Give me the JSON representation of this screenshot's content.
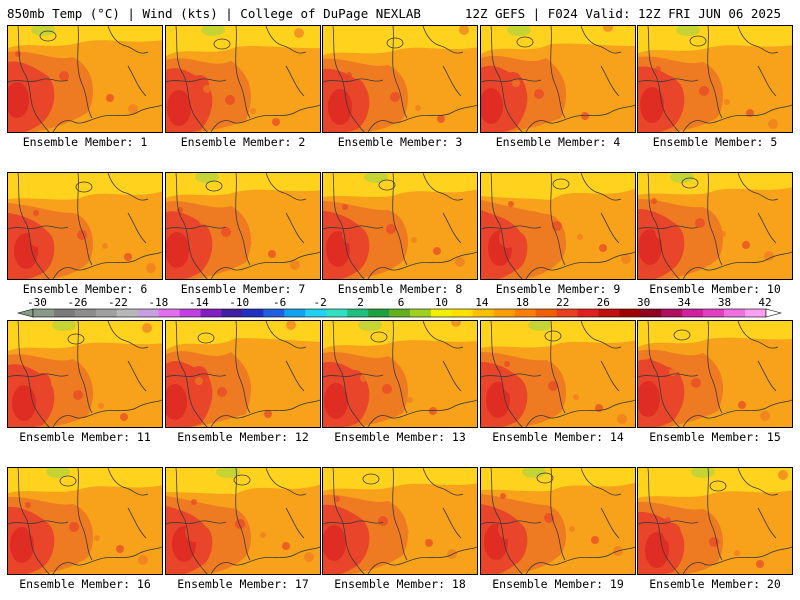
{
  "header": {
    "left": "850mb Temp (°C) | Wind (kts) | College of DuPage NEXLAB",
    "right": "12Z GEFS | F024 Valid: 12Z FRI JUN 06 2025"
  },
  "panels": [
    {
      "label": "Ensemble Member: 1"
    },
    {
      "label": "Ensemble Member: 2"
    },
    {
      "label": "Ensemble Member: 3"
    },
    {
      "label": "Ensemble Member: 4"
    },
    {
      "label": "Ensemble Member: 5"
    },
    {
      "label": "Ensemble Member: 6"
    },
    {
      "label": "Ensemble Member: 7"
    },
    {
      "label": "Ensemble Member: 8"
    },
    {
      "label": "Ensemble Member: 9"
    },
    {
      "label": "Ensemble Member: 10"
    },
    {
      "label": "Ensemble Member: 11"
    },
    {
      "label": "Ensemble Member: 12"
    },
    {
      "label": "Ensemble Member: 13"
    },
    {
      "label": "Ensemble Member: 14"
    },
    {
      "label": "Ensemble Member: 15"
    },
    {
      "label": "Ensemble Member: 16"
    },
    {
      "label": "Ensemble Member: 17"
    },
    {
      "label": "Ensemble Member: 18"
    },
    {
      "label": "Ensemble Member: 19"
    },
    {
      "label": "Ensemble Member: 20"
    }
  ],
  "colorbar": {
    "ticks": [
      "-30",
      "-26",
      "-22",
      "-18",
      "-14",
      "-10",
      "-6",
      "-2",
      "2",
      "6",
      "10",
      "14",
      "18",
      "22",
      "26",
      "30",
      "34",
      "38",
      "42"
    ],
    "colors": [
      "#8a9a8a",
      "#7b7b7b",
      "#8c8c8c",
      "#a0a0a0",
      "#b8b8b8",
      "#c8a0e0",
      "#e070f0",
      "#c040e0",
      "#8020c0",
      "#4020a0",
      "#2030c0",
      "#2060e0",
      "#10a0f0",
      "#20d0f0",
      "#30e0c0",
      "#20c080",
      "#20a040",
      "#60b020",
      "#a0d020",
      "#f0f000",
      "#ffe000",
      "#ffc000",
      "#ffa000",
      "#ff8000",
      "#f06000",
      "#e84020",
      "#e02020",
      "#c01010",
      "#a00000",
      "#900020",
      "#b01060",
      "#d020a0",
      "#e040c0",
      "#f070e0",
      "#ffa0f0"
    ]
  },
  "map_colors": {
    "base": "#f7a21a",
    "north": "#ffd21e",
    "warm": "#ee7a22",
    "hot": "#e8452a",
    "hotter": "#e02d23",
    "cool": "#b8d33a",
    "contour": "#3a3a3a"
  }
}
